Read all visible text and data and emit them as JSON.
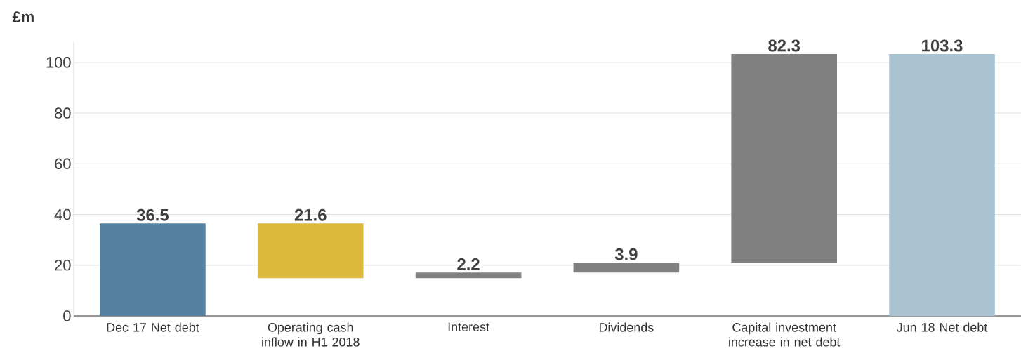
{
  "chart_data": {
    "type": "bar",
    "ylabel": "£m",
    "categories": [
      "Dec 17 Net debt",
      "Operating cash inflow in H1 2018",
      "Interest",
      "Dividends",
      "Capital investment increase in net debt",
      "Jun 18 Net debt"
    ],
    "values": [
      36.5,
      21.6,
      2.2,
      3.9,
      82.3,
      103.3
    ],
    "base": [
      0,
      14.9,
      14.9,
      17.1,
      21.0,
      0
    ],
    "colors": [
      "#5482a0",
      "#ddb83a",
      "#808080",
      "#808080",
      "#808080",
      "#abc4d4"
    ],
    "data_labels": true,
    "ylim": [
      0,
      108
    ],
    "yticks": [
      0,
      20,
      40,
      60,
      80,
      100
    ],
    "grid": "y"
  }
}
